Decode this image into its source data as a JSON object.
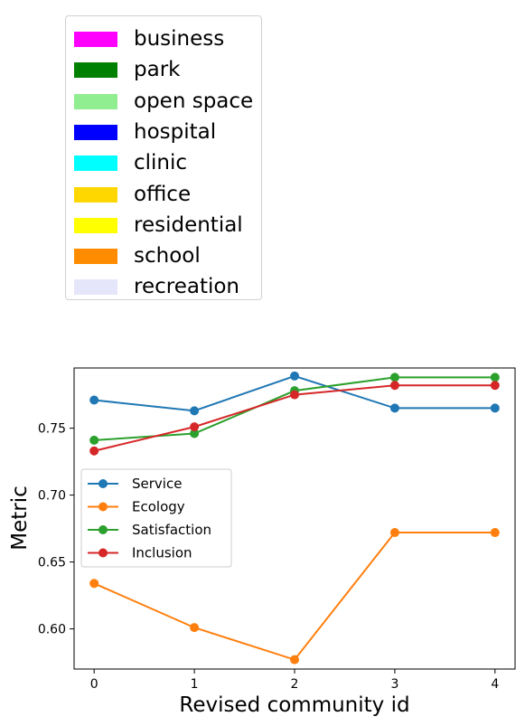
{
  "land_use_legend": [
    {
      "label": "business",
      "color": "#ff00ff"
    },
    {
      "label": "park",
      "color": "#008000"
    },
    {
      "label": "open space",
      "color": "#90ee90"
    },
    {
      "label": "hospital",
      "color": "#0000ff"
    },
    {
      "label": "clinic",
      "color": "#00ffff"
    },
    {
      "label": "office",
      "color": "#ffd700"
    },
    {
      "label": "residential",
      "color": "#ffff00"
    },
    {
      "label": "school",
      "color": "#ff8c00"
    },
    {
      "label": "recreation",
      "color": "#e6e6fa"
    }
  ],
  "chart_data": {
    "type": "line",
    "title": "",
    "xlabel": "Revised community id",
    "ylabel": "Metric",
    "x": [
      0,
      1,
      2,
      3,
      4
    ],
    "x_ticks": [
      "0",
      "1",
      "2",
      "3",
      "4"
    ],
    "y_ticks": [
      "0.60",
      "0.65",
      "0.70",
      "0.75"
    ],
    "xlim": [
      -0.2,
      4.2
    ],
    "ylim": [
      0.57,
      0.795
    ],
    "grid": false,
    "legend_position": "center-left",
    "series": [
      {
        "name": "Service",
        "color": "#1f77b4",
        "values": [
          0.771,
          0.763,
          0.789,
          0.765,
          0.765
        ]
      },
      {
        "name": "Ecology",
        "color": "#ff7f0e",
        "values": [
          0.634,
          0.601,
          0.577,
          0.672,
          0.672
        ]
      },
      {
        "name": "Satisfaction",
        "color": "#2ca02c",
        "values": [
          0.741,
          0.746,
          0.778,
          0.788,
          0.788
        ]
      },
      {
        "name": "Inclusion",
        "color": "#d62728",
        "values": [
          0.733,
          0.751,
          0.775,
          0.782,
          0.782
        ]
      }
    ]
  }
}
